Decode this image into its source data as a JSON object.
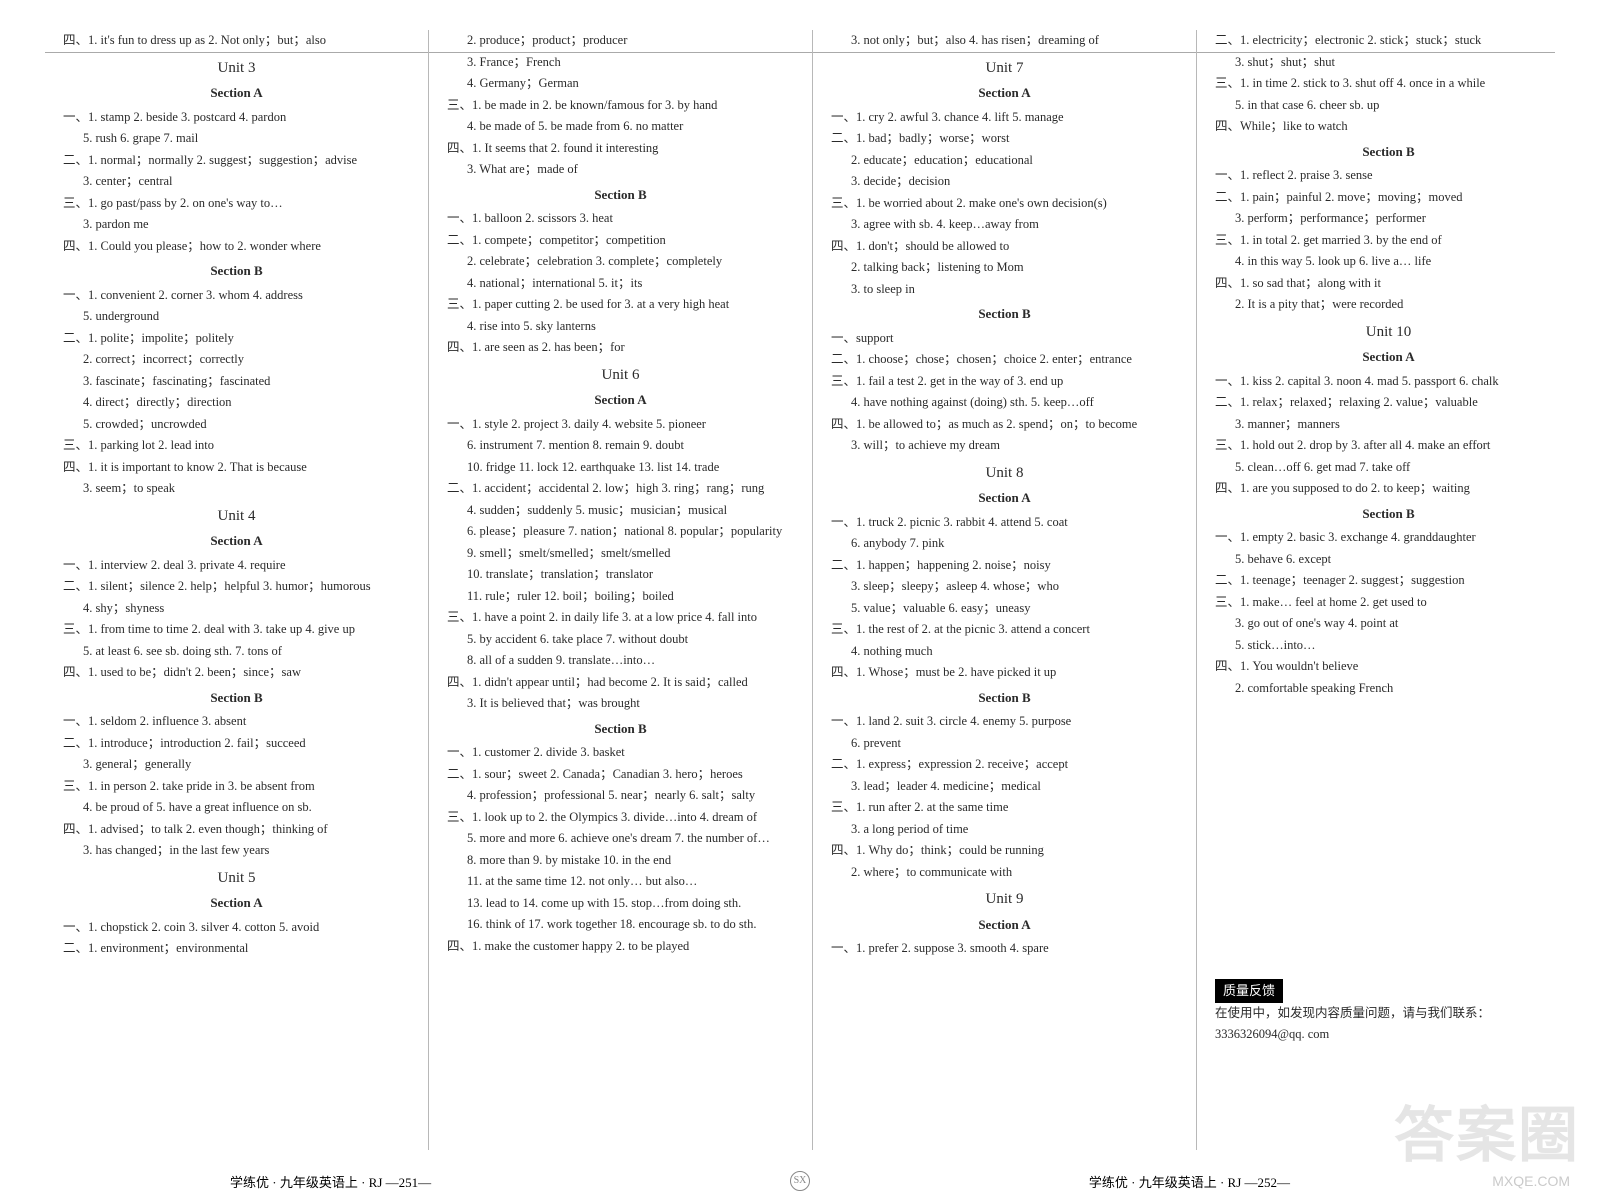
{
  "colors": {
    "text": "#2a2a2a",
    "divider": "#b8b8b8",
    "bg": "#ffffff",
    "feedback_bg": "#000000",
    "feedback_fg": "#ffffff",
    "watermark": "rgba(180,180,180,0.35)"
  },
  "typography": {
    "body_pt": 12.5,
    "line_height": 21.5,
    "unit_pt": 15,
    "section_pt": 13
  },
  "columns": [
    {
      "blocks": [
        {
          "type": "line",
          "text": "四、1. it's fun to dress up as  2. Not only；but；also",
          "cls": ""
        },
        {
          "type": "unit",
          "text": "Unit 3"
        },
        {
          "type": "section",
          "text": "Section A"
        },
        {
          "type": "line",
          "text": "一、1. stamp  2. beside  3. postcard  4. pardon"
        },
        {
          "type": "line",
          "text": "5. rush  6. grape  7. mail",
          "cls": "indent"
        },
        {
          "type": "line",
          "text": "二、1. normal；normally  2. suggest；suggestion；advise"
        },
        {
          "type": "line",
          "text": "3. center；central",
          "cls": "indent"
        },
        {
          "type": "line",
          "text": "三、1. go past/pass by  2. on one's way to…"
        },
        {
          "type": "line",
          "text": "3. pardon me",
          "cls": "indent"
        },
        {
          "type": "line",
          "text": "四、1. Could you please；how to  2. wonder where"
        },
        {
          "type": "section",
          "text": "Section B"
        },
        {
          "type": "line",
          "text": "一、1. convenient  2. corner  3. whom  4. address"
        },
        {
          "type": "line",
          "text": "5. underground",
          "cls": "indent"
        },
        {
          "type": "line",
          "text": "二、1. polite；impolite；politely"
        },
        {
          "type": "line",
          "text": "2. correct；incorrect；correctly",
          "cls": "indent"
        },
        {
          "type": "line",
          "text": "3. fascinate；fascinating；fascinated",
          "cls": "indent"
        },
        {
          "type": "line",
          "text": "4. direct；directly；direction",
          "cls": "indent"
        },
        {
          "type": "line",
          "text": "5. crowded；uncrowded",
          "cls": "indent"
        },
        {
          "type": "line",
          "text": "三、1. parking lot  2. lead into"
        },
        {
          "type": "line",
          "text": "四、1. it is important to know  2. That is because"
        },
        {
          "type": "line",
          "text": "3. seem；to speak",
          "cls": "indent"
        },
        {
          "type": "unit",
          "text": "Unit 4"
        },
        {
          "type": "section",
          "text": "Section A"
        },
        {
          "type": "line",
          "text": "一、1. interview  2. deal  3. private  4. require"
        },
        {
          "type": "line",
          "text": "二、1. silent；silence  2. help；helpful  3. humor；humorous"
        },
        {
          "type": "line",
          "text": "4. shy；shyness",
          "cls": "indent"
        },
        {
          "type": "line",
          "text": "三、1. from time to time  2. deal with  3. take up  4. give up"
        },
        {
          "type": "line",
          "text": "5. at least  6. see sb. doing sth.  7. tons of",
          "cls": "indent"
        },
        {
          "type": "line",
          "text": "四、1. used to be；didn't  2. been；since；saw"
        },
        {
          "type": "section",
          "text": "Section B"
        },
        {
          "type": "line",
          "text": "一、1. seldom  2. influence  3. absent"
        },
        {
          "type": "line",
          "text": "二、1. introduce；introduction  2. fail；succeed"
        },
        {
          "type": "line",
          "text": "3. general；generally",
          "cls": "indent"
        },
        {
          "type": "line",
          "text": "三、1. in person  2. take pride in  3. be absent from"
        },
        {
          "type": "line",
          "text": "4. be proud of  5. have a great influence on sb.",
          "cls": "indent"
        },
        {
          "type": "line",
          "text": "四、1. advised；to talk  2. even though；thinking of"
        },
        {
          "type": "line",
          "text": "3. has changed；in the last few years",
          "cls": "indent"
        },
        {
          "type": "unit",
          "text": "Unit 5"
        },
        {
          "type": "section",
          "text": "Section A"
        },
        {
          "type": "line",
          "text": "一、1. chopstick  2. coin  3. silver  4. cotton  5. avoid"
        },
        {
          "type": "line",
          "text": "二、1. environment；environmental"
        }
      ]
    },
    {
      "blocks": [
        {
          "type": "line",
          "text": "2. produce；product；producer",
          "cls": "indent"
        },
        {
          "type": "line",
          "text": "3. France；French",
          "cls": "indent"
        },
        {
          "type": "line",
          "text": "4. Germany；German",
          "cls": "indent"
        },
        {
          "type": "line",
          "text": "三、1. be made in  2. be known/famous for  3. by hand"
        },
        {
          "type": "line",
          "text": "4. be made of  5. be made from  6. no matter",
          "cls": "indent"
        },
        {
          "type": "line",
          "text": "四、1. It seems that  2. found it interesting"
        },
        {
          "type": "line",
          "text": "3. What are；made of",
          "cls": "indent"
        },
        {
          "type": "section",
          "text": "Section B"
        },
        {
          "type": "line",
          "text": "一、1. balloon  2. scissors  3. heat"
        },
        {
          "type": "line",
          "text": "二、1. compete；competitor；competition"
        },
        {
          "type": "line",
          "text": "2. celebrate；celebration  3. complete；completely",
          "cls": "indent"
        },
        {
          "type": "line",
          "text": "4. national；international  5. it；its",
          "cls": "indent"
        },
        {
          "type": "line",
          "text": "三、1. paper cutting  2. be used for  3. at a very high heat"
        },
        {
          "type": "line",
          "text": "4. rise into  5. sky lanterns",
          "cls": "indent"
        },
        {
          "type": "line",
          "text": "四、1. are seen as  2. has been；for"
        },
        {
          "type": "unit",
          "text": "Unit 6"
        },
        {
          "type": "section",
          "text": "Section A"
        },
        {
          "type": "line",
          "text": "一、1. style  2. project  3. daily  4. website  5. pioneer"
        },
        {
          "type": "line",
          "text": "6. instrument  7. mention  8. remain  9. doubt",
          "cls": "indent"
        },
        {
          "type": "line",
          "text": "10. fridge  11. lock  12. earthquake  13. list  14. trade",
          "cls": "indent"
        },
        {
          "type": "line",
          "text": "二、1. accident；accidental  2. low；high  3. ring；rang；rung"
        },
        {
          "type": "line",
          "text": "4. sudden；suddenly  5. music；musician；musical",
          "cls": "indent"
        },
        {
          "type": "line",
          "text": "6. please；pleasure  7. nation；national  8. popular；popularity",
          "cls": "indent"
        },
        {
          "type": "line",
          "text": "9. smell；smelt/smelled；smelt/smelled",
          "cls": "indent"
        },
        {
          "type": "line",
          "text": "10. translate；translation；translator",
          "cls": "indent"
        },
        {
          "type": "line",
          "text": "11. rule；ruler  12. boil；boiling；boiled",
          "cls": "indent"
        },
        {
          "type": "line",
          "text": "三、1. have a point  2. in daily life  3. at a low price  4. fall into"
        },
        {
          "type": "line",
          "text": "5. by accident  6. take place  7. without doubt",
          "cls": "indent"
        },
        {
          "type": "line",
          "text": "8. all of a sudden  9. translate…into…",
          "cls": "indent"
        },
        {
          "type": "line",
          "text": "四、1. didn't appear until；had become  2. It is said；called"
        },
        {
          "type": "line",
          "text": "3. It is believed that；was brought",
          "cls": "indent"
        },
        {
          "type": "section",
          "text": "Section B"
        },
        {
          "type": "line",
          "text": "一、1. customer  2. divide  3. basket"
        },
        {
          "type": "line",
          "text": "二、1. sour；sweet  2. Canada；Canadian  3. hero；heroes"
        },
        {
          "type": "line",
          "text": "4. profession；professional  5. near；nearly  6. salt；salty",
          "cls": "indent"
        },
        {
          "type": "line",
          "text": "三、1. look up to  2. the Olympics  3. divide…into  4. dream of"
        },
        {
          "type": "line",
          "text": "5. more and more  6. achieve one's dream  7. the number of…",
          "cls": "indent"
        },
        {
          "type": "line",
          "text": "8. more than  9. by mistake  10. in the end",
          "cls": "indent"
        },
        {
          "type": "line",
          "text": "11. at the same time  12. not only… but also…",
          "cls": "indent"
        },
        {
          "type": "line",
          "text": "13. lead to  14. come up with  15. stop…from doing sth.",
          "cls": "indent"
        },
        {
          "type": "line",
          "text": "16. think of  17. work together  18. encourage sb. to do sth.",
          "cls": "indent"
        },
        {
          "type": "line",
          "text": "四、1. make the customer happy  2. to be played"
        }
      ]
    },
    {
      "blocks": [
        {
          "type": "line",
          "text": "3. not only；but；also  4. has risen；dreaming of",
          "cls": "indent"
        },
        {
          "type": "unit",
          "text": "Unit 7"
        },
        {
          "type": "section",
          "text": "Section A"
        },
        {
          "type": "line",
          "text": "一、1. cry  2. awful  3. chance  4. lift  5. manage"
        },
        {
          "type": "line",
          "text": "二、1. bad；badly；worse；worst"
        },
        {
          "type": "line",
          "text": "2. educate；education；educational",
          "cls": "indent"
        },
        {
          "type": "line",
          "text": "3. decide；decision",
          "cls": "indent"
        },
        {
          "type": "line",
          "text": "三、1. be worried about  2. make one's own decision(s)"
        },
        {
          "type": "line",
          "text": "3. agree with sb.  4. keep…away from",
          "cls": "indent"
        },
        {
          "type": "line",
          "text": "四、1. don't；should be allowed to"
        },
        {
          "type": "line",
          "text": "2. talking back；listening to Mom",
          "cls": "indent"
        },
        {
          "type": "line",
          "text": "3. to sleep in",
          "cls": "indent"
        },
        {
          "type": "section",
          "text": "Section B"
        },
        {
          "type": "line",
          "text": "一、support"
        },
        {
          "type": "line",
          "text": "二、1. choose；chose；chosen；choice  2. enter；entrance"
        },
        {
          "type": "line",
          "text": "三、1. fail a test  2. get in the way of  3. end up"
        },
        {
          "type": "line",
          "text": "4. have nothing against (doing) sth.  5. keep…off",
          "cls": "indent"
        },
        {
          "type": "line",
          "text": "四、1. be allowed to；as much as  2. spend；on；to become"
        },
        {
          "type": "line",
          "text": "3. will；to achieve my dream",
          "cls": "indent"
        },
        {
          "type": "unit",
          "text": "Unit 8"
        },
        {
          "type": "section",
          "text": "Section A"
        },
        {
          "type": "line",
          "text": "一、1. truck  2. picnic  3. rabbit  4. attend  5. coat"
        },
        {
          "type": "line",
          "text": "6. anybody  7. pink",
          "cls": "indent"
        },
        {
          "type": "line",
          "text": "二、1. happen；happening  2. noise；noisy"
        },
        {
          "type": "line",
          "text": "3. sleep；sleepy；asleep  4. whose；who",
          "cls": "indent"
        },
        {
          "type": "line",
          "text": "5. value；valuable  6. easy；uneasy",
          "cls": "indent"
        },
        {
          "type": "line",
          "text": "三、1. the rest of  2. at the picnic  3. attend a concert"
        },
        {
          "type": "line",
          "text": "4. nothing much",
          "cls": "indent"
        },
        {
          "type": "line",
          "text": "四、1. Whose；must be  2. have picked it up"
        },
        {
          "type": "section",
          "text": "Section B"
        },
        {
          "type": "line",
          "text": "一、1. land  2. suit  3. circle  4. enemy  5. purpose"
        },
        {
          "type": "line",
          "text": "6. prevent",
          "cls": "indent"
        },
        {
          "type": "line",
          "text": "二、1. express；expression  2. receive；accept"
        },
        {
          "type": "line",
          "text": "3. lead；leader  4. medicine；medical",
          "cls": "indent"
        },
        {
          "type": "line",
          "text": "三、1. run after  2. at the same time"
        },
        {
          "type": "line",
          "text": "3. a long period of time",
          "cls": "indent"
        },
        {
          "type": "line",
          "text": "四、1. Why do；think；could be running"
        },
        {
          "type": "line",
          "text": "2. where；to communicate with",
          "cls": "indent"
        },
        {
          "type": "unit",
          "text": "Unit 9"
        },
        {
          "type": "section",
          "text": "Section A"
        },
        {
          "type": "line",
          "text": "一、1. prefer  2. suppose  3. smooth  4. spare"
        }
      ]
    },
    {
      "blocks": [
        {
          "type": "line",
          "text": "二、1. electricity；electronic  2. stick；stuck；stuck"
        },
        {
          "type": "line",
          "text": "3. shut；shut；shut",
          "cls": "indent"
        },
        {
          "type": "line",
          "text": "三、1. in time  2. stick to  3. shut off  4. once in a while"
        },
        {
          "type": "line",
          "text": "5. in that case  6. cheer sb. up",
          "cls": "indent"
        },
        {
          "type": "line",
          "text": "四、While；like to watch"
        },
        {
          "type": "section",
          "text": "Section B"
        },
        {
          "type": "line",
          "text": "一、1. reflect  2. praise  3. sense"
        },
        {
          "type": "line",
          "text": "二、1. pain；painful  2. move；moving；moved"
        },
        {
          "type": "line",
          "text": "3. perform；performance；performer",
          "cls": "indent"
        },
        {
          "type": "line",
          "text": "三、1. in total  2. get married  3. by the end of"
        },
        {
          "type": "line",
          "text": "4. in this way  5. look up  6. live a… life",
          "cls": "indent"
        },
        {
          "type": "line",
          "text": "四、1. so sad that；along with it"
        },
        {
          "type": "line",
          "text": "2. It is a pity that；were recorded",
          "cls": "indent"
        },
        {
          "type": "unit",
          "text": "Unit 10"
        },
        {
          "type": "section",
          "text": "Section A"
        },
        {
          "type": "line",
          "text": "一、1. kiss  2. capital  3. noon  4. mad  5. passport  6. chalk"
        },
        {
          "type": "line",
          "text": "二、1. relax；relaxed；relaxing  2. value；valuable"
        },
        {
          "type": "line",
          "text": "3. manner；manners",
          "cls": "indent"
        },
        {
          "type": "line",
          "text": "三、1. hold out  2. drop by  3. after all  4. make an effort"
        },
        {
          "type": "line",
          "text": "5. clean…off  6. get mad  7. take off",
          "cls": "indent"
        },
        {
          "type": "line",
          "text": "四、1. are you supposed to do  2. to keep；waiting"
        },
        {
          "type": "section",
          "text": "Section B"
        },
        {
          "type": "line",
          "text": "一、1. empty  2. basic  3. exchange  4. granddaughter"
        },
        {
          "type": "line",
          "text": "5. behave  6. except",
          "cls": "indent"
        },
        {
          "type": "line",
          "text": "二、1. teenage；teenager  2. suggest；suggestion"
        },
        {
          "type": "line",
          "text": "三、1. make… feel at home  2. get used to"
        },
        {
          "type": "line",
          "text": "3. go out of one's way  4. point at",
          "cls": "indent"
        },
        {
          "type": "line",
          "text": "5. stick…into…",
          "cls": "indent"
        },
        {
          "type": "line",
          "text": "四、1. You wouldn't believe"
        },
        {
          "type": "line",
          "text": "2. comfortable speaking French",
          "cls": "indent"
        },
        {
          "type": "spacer"
        },
        {
          "type": "feedback",
          "text": "质量反馈"
        },
        {
          "type": "line",
          "text": "   在使用中，如发现内容质量问题，请与我们联系："
        },
        {
          "type": "line",
          "text": "3336326094@qq. com"
        }
      ]
    }
  ],
  "footer": {
    "left": "学练优 · 九年级英语上 · RJ —251—",
    "right": "学练优 · 九年级英语上 · RJ —252—",
    "center": "SX"
  },
  "watermark": {
    "big": "答案圈",
    "small": "MXQE.COM"
  }
}
